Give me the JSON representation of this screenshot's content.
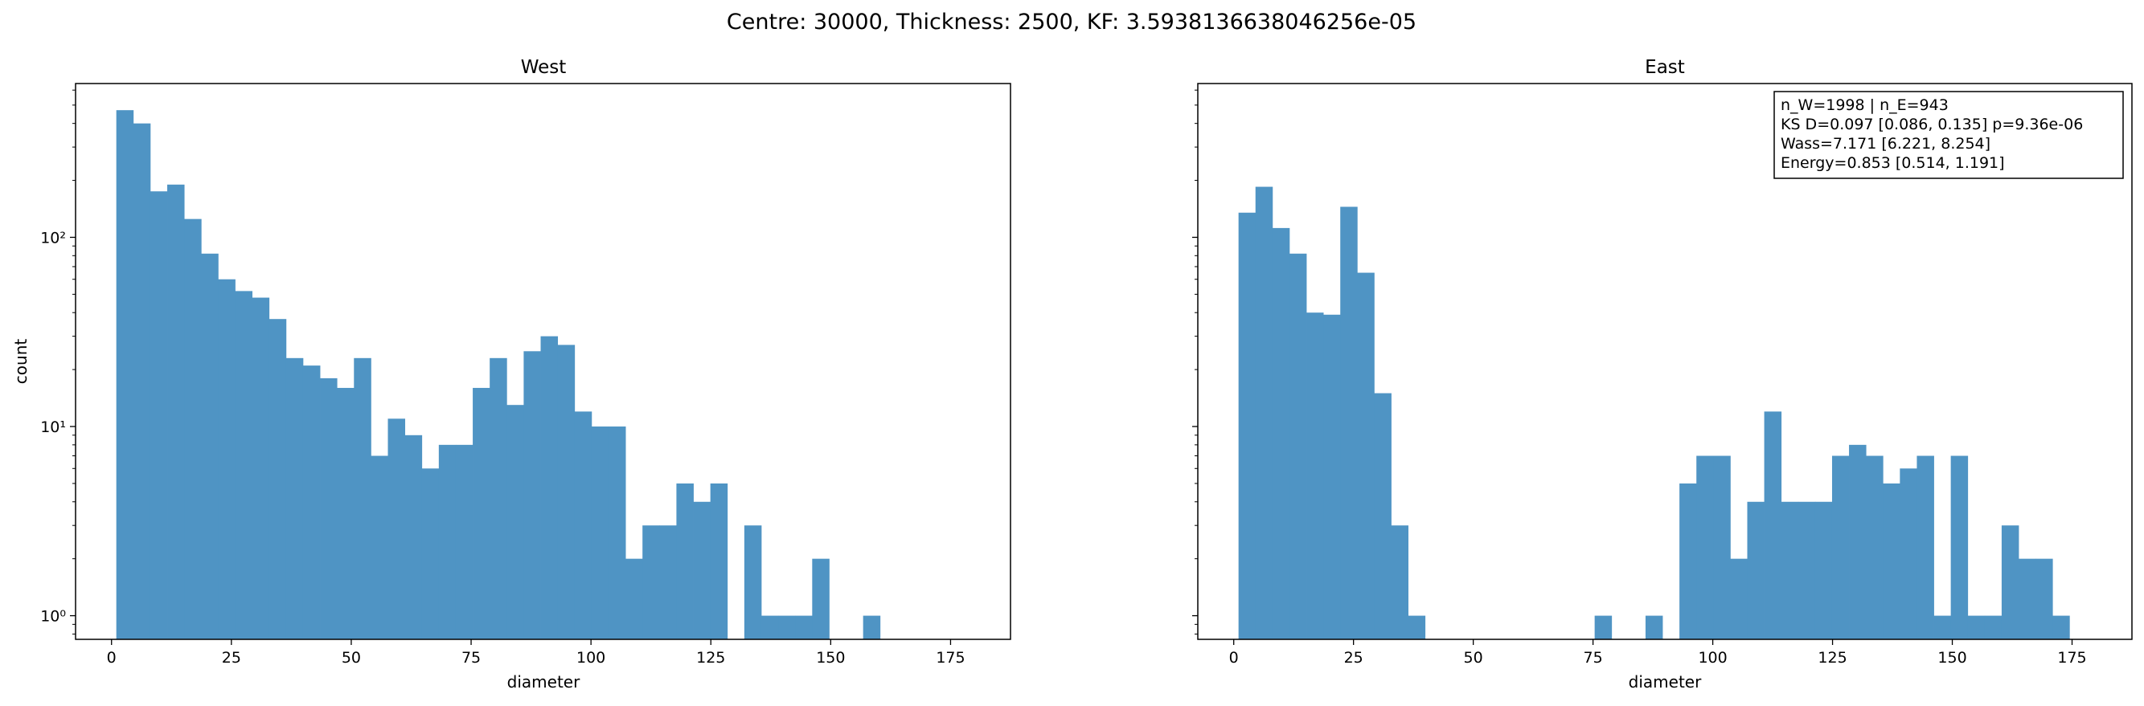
{
  "figure": {
    "suptitle": "Centre: 30000, Thickness: 2500, KF: 3.5938136638046256e-05"
  },
  "colors": {
    "bar": "#4f94c4",
    "axis": "#000000",
    "background": "#ffffff"
  },
  "stats_box": {
    "lines": [
      "n_W=1998 | n_E=943",
      "KS D=0.097 [0.086, 0.135]  p=9.36e-06",
      "Wass=7.171 [6.221, 8.254]",
      "Energy=0.853 [0.514, 1.191]"
    ]
  },
  "chart_data": [
    {
      "type": "bar",
      "title": "West",
      "xlabel": "diameter",
      "ylabel": "count",
      "yscale": "log",
      "xlim": [
        -7.5,
        187.5
      ],
      "ylim": [
        0.75,
        650
      ],
      "xticks": [
        0,
        25,
        50,
        75,
        100,
        125,
        150,
        175
      ],
      "xtick_labels": [
        "0",
        "25",
        "50",
        "75",
        "100",
        "125",
        "150",
        "175"
      ],
      "yticks": [
        1,
        10,
        100
      ],
      "ytick_labels": [
        "10⁰",
        "10¹",
        "10²"
      ],
      "bin_edges": [
        1,
        4.54,
        8.08,
        11.62,
        15.16,
        18.7,
        22.24,
        25.78,
        29.32,
        32.86,
        36.4,
        39.94,
        43.48,
        47.02,
        50.56,
        54.1,
        57.64,
        61.18,
        64.72,
        68.26,
        71.8,
        75.34,
        78.88,
        82.42,
        85.96,
        89.5,
        93.04,
        96.58,
        100.12,
        103.66,
        107.2,
        110.74,
        114.28,
        117.82,
        121.36,
        124.9,
        128.44,
        131.98,
        135.52,
        139.06,
        142.6,
        146.14,
        149.68,
        153.22,
        156.76,
        160.3,
        163.84,
        167.38,
        170.92,
        174.46,
        178
      ],
      "counts": [
        470,
        400,
        175,
        190,
        125,
        82,
        60,
        52,
        48,
        37,
        23,
        21,
        18,
        16,
        23,
        7,
        11,
        9,
        6,
        8,
        8,
        16,
        23,
        13,
        25,
        30,
        27,
        12,
        10,
        10,
        2,
        3,
        3,
        5,
        4,
        5,
        0,
        3,
        1,
        1,
        1,
        2,
        0,
        0,
        1,
        0,
        0,
        0,
        0,
        0
      ]
    },
    {
      "type": "bar",
      "title": "East",
      "xlabel": "diameter",
      "ylabel": "",
      "yscale": "log",
      "xlim": [
        -7.5,
        187.5
      ],
      "ylim": [
        0.75,
        650
      ],
      "xticks": [
        0,
        25,
        50,
        75,
        100,
        125,
        150,
        175
      ],
      "xtick_labels": [
        "0",
        "25",
        "50",
        "75",
        "100",
        "125",
        "150",
        "175"
      ],
      "yticks": [
        1,
        10,
        100
      ],
      "ytick_labels": [
        "",
        "",
        ""
      ],
      "bin_edges": [
        1,
        4.54,
        8.08,
        11.62,
        15.16,
        18.7,
        22.24,
        25.78,
        29.32,
        32.86,
        36.4,
        39.94,
        43.48,
        47.02,
        50.56,
        54.1,
        57.64,
        61.18,
        64.72,
        68.26,
        71.8,
        75.34,
        78.88,
        82.42,
        85.96,
        89.5,
        93.04,
        96.58,
        100.12,
        103.66,
        107.2,
        110.74,
        114.28,
        117.82,
        121.36,
        124.9,
        128.44,
        131.98,
        135.52,
        139.06,
        142.6,
        146.14,
        149.68,
        153.22,
        156.76,
        160.3,
        163.84,
        167.38,
        170.92,
        174.46,
        178
      ],
      "counts": [
        135,
        185,
        112,
        82,
        40,
        39,
        145,
        65,
        15,
        3,
        1,
        0,
        0,
        0,
        0,
        0,
        0,
        0,
        0,
        0,
        0,
        1,
        0,
        0,
        1,
        0,
        5,
        7,
        7,
        2,
        4,
        12,
        4,
        4,
        4,
        7,
        8,
        7,
        5,
        6,
        7,
        1,
        7,
        1,
        1,
        3,
        2,
        2,
        1,
        0
      ]
    }
  ]
}
